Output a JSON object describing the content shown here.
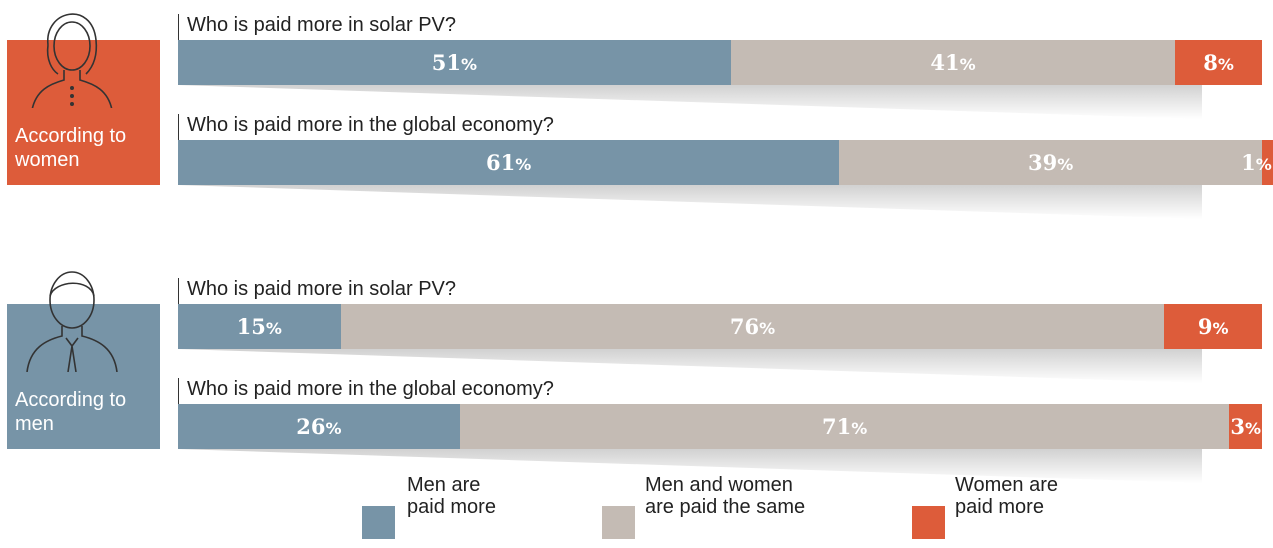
{
  "chart_data": {
    "type": "stacked-bar",
    "groups": [
      "According to\nwomen",
      "According to\nmen"
    ],
    "categories": [
      "Who is paid more in solar PV?",
      "Who is paid more in the global economy?",
      "Who is paid more in solar PV?",
      "Who is paid more in the global economy?"
    ],
    "xlim": [
      0,
      100
    ],
    "series": [
      {
        "name": "Men are\npaid more",
        "color": "#7794a7",
        "values": [
          51,
          61,
          15,
          26
        ],
        "value_labels": [
          "51%",
          "61%",
          "15%",
          "26%"
        ]
      },
      {
        "name": "Men and women\nare paid the same",
        "color": "#c4bbb4",
        "values": [
          41,
          39,
          76,
          71
        ],
        "value_labels": [
          "41%",
          "39%",
          "76%",
          "71%"
        ]
      },
      {
        "name": "Women are\npaid more",
        "color": "#dd5c3a",
        "values": [
          8,
          1,
          9,
          3
        ],
        "value_labels": [
          "8%",
          "1%",
          "9%",
          "3%"
        ]
      }
    ]
  }
}
